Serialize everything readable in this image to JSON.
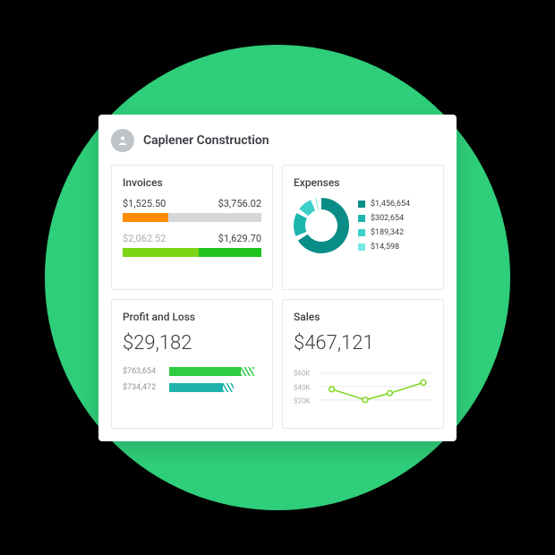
{
  "page_bg": "#000000",
  "circle_bg": "#2fce7a",
  "header": {
    "company_name": "Caplener Construction"
  },
  "invoices": {
    "title": "Invoices",
    "row1": {
      "left": "$1,525.50",
      "right": "$3,756.02"
    },
    "bar1": {
      "segments": [
        {
          "color": "#ff8b00",
          "pct": 33
        },
        {
          "color": "#d5d7d9",
          "pct": 67
        }
      ]
    },
    "row2": {
      "left": "$2,062.52",
      "right": "$1,629.70"
    },
    "bar2": {
      "segments": [
        {
          "color": "#7dd415",
          "pct": 55
        },
        {
          "color": "#1ec31e",
          "pct": 45
        }
      ]
    }
  },
  "expenses": {
    "title": "Expenses",
    "donut": {
      "type": "donut",
      "size": 62,
      "inner_ratio": 0.58,
      "gap_deg": 10,
      "background": "#ffffff",
      "slices": [
        {
          "label": "$1,456,654",
          "value": 1456654,
          "color": "#0a8d87"
        },
        {
          "label": "$302,654",
          "value": 302654,
          "color": "#1bb5ad"
        },
        {
          "label": "$189,342",
          "value": 189342,
          "color": "#3bd1ca"
        },
        {
          "label": "$14,598",
          "value": 14598,
          "color": "#79e8e3"
        }
      ]
    }
  },
  "profit_loss": {
    "title": "Profit and Loss",
    "total": "$29,182",
    "rows": [
      {
        "label": "$763,654",
        "value": 763654,
        "color": "#2ecc40",
        "solid_pct": 78,
        "hatch_pct": 14
      },
      {
        "label": "$734,472",
        "value": 734472,
        "color": "#1fb3ac",
        "solid_pct": 58,
        "hatch_pct": 12
      }
    ]
  },
  "sales": {
    "title": "Sales",
    "total": "$467,121",
    "chart": {
      "type": "line",
      "ylim": [
        0,
        80
      ],
      "yticks": [
        {
          "v": 60,
          "label": "$60K"
        },
        {
          "v": 40,
          "label": "$40K"
        },
        {
          "v": 20,
          "label": "$20K"
        }
      ],
      "grid_color": "#e6e8ea",
      "line_color": "#7dd415",
      "marker_fill": "#ffffff",
      "points": [
        {
          "x": 0.1,
          "y": 36
        },
        {
          "x": 0.4,
          "y": 20
        },
        {
          "x": 0.62,
          "y": 30
        },
        {
          "x": 0.92,
          "y": 46
        }
      ]
    }
  }
}
